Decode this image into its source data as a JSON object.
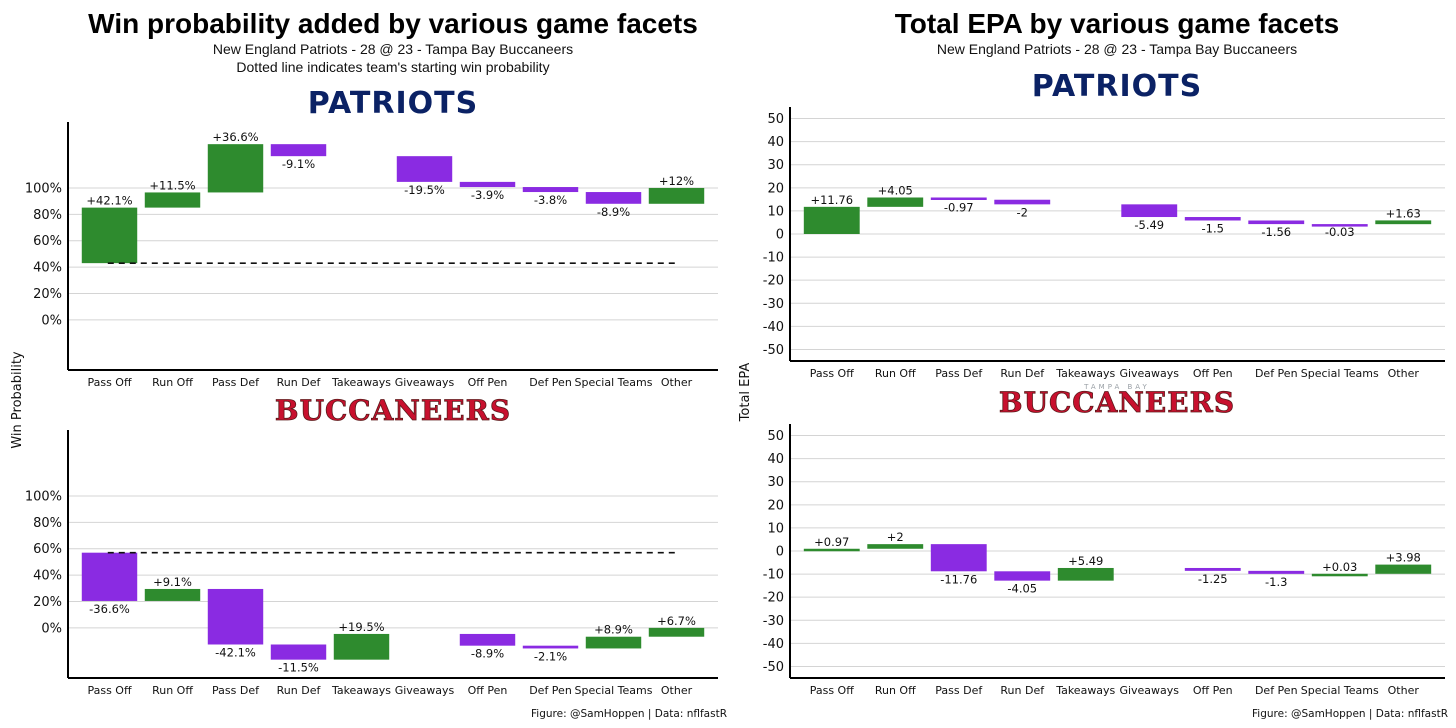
{
  "left": {
    "title": "Win probability added by various game facets",
    "subtitle": "New England Patriots - 28 @ 23 - Tampa Bay Buccaneers",
    "subtitle2": "Dotted line indicates team's starting win probability",
    "ylabel": "Win Probability"
  },
  "right": {
    "title": "Total EPA by various game facets",
    "subtitle": "New England Patriots - 28 @ 23 - Tampa Bay Buccaneers",
    "ylabel": "Total EPA"
  },
  "caption": "Figure: @SamHoppen | Data: nflfastR",
  "logos": {
    "patriots": "PATRIOTS",
    "buccaneers": "BUCCANEERS",
    "tampa_bay": "TAMPA BAY"
  },
  "colors": {
    "positive": "#2e8b2e",
    "negative": "#8a2be2",
    "patriots_navy": "#0b2265",
    "bucs_red": "#c8102e"
  },
  "chart_data": [
    {
      "type": "bar",
      "subtype": "waterfall",
      "panel": "Patriots",
      "categories": [
        "Pass Off",
        "Run Off",
        "Pass Def",
        "Run Def",
        "Takeaways",
        "Giveaways",
        "Off Pen",
        "Def Pen",
        "Special Teams",
        "Other"
      ],
      "values": [
        42.1,
        11.5,
        36.6,
        -9.1,
        0,
        -19.5,
        -3.9,
        -3.8,
        -8.9,
        12
      ],
      "labels": [
        "+42.1%",
        "+11.5%",
        "+36.6%",
        "-9.1%",
        "",
        "-19.5%",
        "-3.9%",
        "-3.8%",
        "-8.9%",
        "+12%"
      ],
      "start": 43,
      "yticks": [
        "0%",
        "20%",
        "40%",
        "60%",
        "80%",
        "100%"
      ],
      "ytick_values": [
        0,
        20,
        40,
        60,
        80,
        100
      ],
      "ylim": [
        -38,
        150
      ]
    },
    {
      "type": "bar",
      "subtype": "waterfall",
      "panel": "Buccaneers",
      "categories": [
        "Pass Off",
        "Run Off",
        "Pass Def",
        "Run Def",
        "Takeaways",
        "Giveaways",
        "Off Pen",
        "Def Pen",
        "Special Teams",
        "Other"
      ],
      "values": [
        -36.6,
        9.1,
        -42.1,
        -11.5,
        19.5,
        0,
        -8.9,
        -2.1,
        8.9,
        6.7
      ],
      "labels": [
        "-36.6%",
        "+9.1%",
        "-42.1%",
        "-11.5%",
        "+19.5%",
        "",
        "-8.9%",
        "-2.1%",
        "+8.9%",
        "+6.7%"
      ],
      "start": 57,
      "yticks": [
        "0%",
        "20%",
        "40%",
        "60%",
        "80%",
        "100%"
      ],
      "ytick_values": [
        0,
        20,
        40,
        60,
        80,
        100
      ],
      "ylim": [
        -38,
        150
      ]
    },
    {
      "type": "bar",
      "subtype": "waterfall",
      "panel": "Patriots",
      "categories": [
        "Pass Off",
        "Run Off",
        "Pass Def",
        "Run Def",
        "Takeaways",
        "Giveaways",
        "Off Pen",
        "Def Pen",
        "Special Teams",
        "Other"
      ],
      "values": [
        11.76,
        4.05,
        -0.97,
        -2,
        0,
        -5.49,
        -1.5,
        -1.56,
        -0.03,
        1.63
      ],
      "labels": [
        "+11.76",
        "+4.05",
        "-0.97",
        "-2",
        "",
        "-5.49",
        "-1.5",
        "-1.56",
        "-0.03",
        "+1.63"
      ],
      "start": 0,
      "yticks": [
        "-50",
        "-40",
        "-30",
        "-20",
        "-10",
        "0",
        "10",
        "20",
        "30",
        "40",
        "50"
      ],
      "ytick_values": [
        -50,
        -40,
        -30,
        -20,
        -10,
        0,
        10,
        20,
        30,
        40,
        50
      ],
      "ylim": [
        -55,
        55
      ]
    },
    {
      "type": "bar",
      "subtype": "waterfall",
      "panel": "Buccaneers",
      "categories": [
        "Pass Off",
        "Run Off",
        "Pass Def",
        "Run Def",
        "Takeaways",
        "Giveaways",
        "Off Pen",
        "Def Pen",
        "Special Teams",
        "Other"
      ],
      "values": [
        0.97,
        2,
        -11.76,
        -4.05,
        5.49,
        0,
        -1.25,
        -1.3,
        0.03,
        3.98
      ],
      "labels": [
        "+0.97",
        "+2",
        "-11.76",
        "-4.05",
        "+5.49",
        "",
        "-1.25",
        "-1.3",
        "+0.03",
        "+3.98"
      ],
      "start": 0,
      "yticks": [
        "-50",
        "-40",
        "-30",
        "-20",
        "-10",
        "0",
        "10",
        "20",
        "30",
        "40",
        "50"
      ],
      "ytick_values": [
        -50,
        -40,
        -30,
        -20,
        -10,
        0,
        10,
        20,
        30,
        40,
        50
      ],
      "ylim": [
        -55,
        55
      ]
    }
  ]
}
